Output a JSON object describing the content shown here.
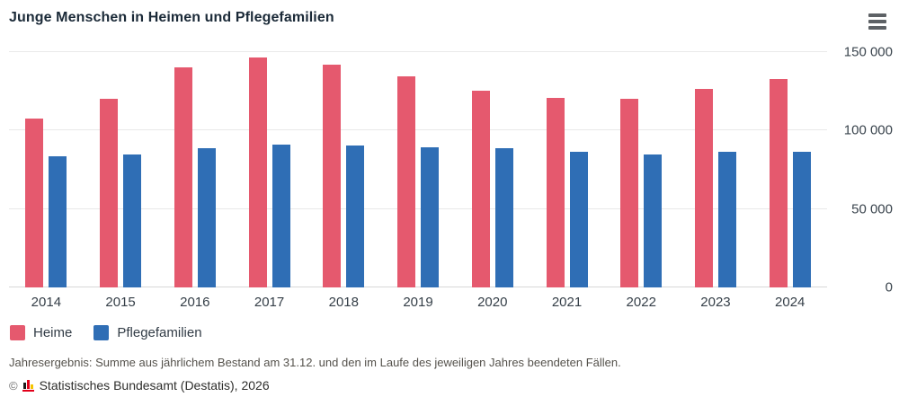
{
  "header": {
    "title": "Junge Menschen in Heimen und Pflegefamilien",
    "menu_icon": "hamburger-menu-icon"
  },
  "chart_data": {
    "type": "bar",
    "title": "Junge Menschen in Heimen und Pflegefamilien",
    "categories": [
      "2014",
      "2015",
      "2016",
      "2017",
      "2018",
      "2019",
      "2020",
      "2021",
      "2022",
      "2023",
      "2024"
    ],
    "series": [
      {
        "name": "Heime",
        "color": "#e5596e",
        "values": [
          107500,
          120500,
          140500,
          146500,
          142000,
          134500,
          125500,
          121000,
          120000,
          126500,
          133000
        ]
      },
      {
        "name": "Pflegefamilien",
        "color": "#2f6eb5",
        "values": [
          83500,
          85000,
          88500,
          91000,
          90500,
          89500,
          88500,
          86500,
          85000,
          86500,
          86500
        ]
      }
    ],
    "xlabel": "",
    "ylabel": "",
    "ylim": [
      0,
      157000
    ],
    "yticks": [
      0,
      50000,
      100000,
      150000
    ],
    "ytick_labels": [
      "0",
      "50 000",
      "100 000",
      "150 000"
    ],
    "grid": true,
    "legend_position": "bottom-left",
    "y_axis_side": "right"
  },
  "footnote": "Jahresergebnis: Summe aus jährlichem Bestand am 31.12. und den im Laufe des jeweiligen Jahres beendeten Fällen.",
  "copyright": {
    "symbol": "©",
    "text": "Statistisches Bundesamt (Destatis), 2026",
    "logo": "destatis-bar-chart-logo"
  }
}
